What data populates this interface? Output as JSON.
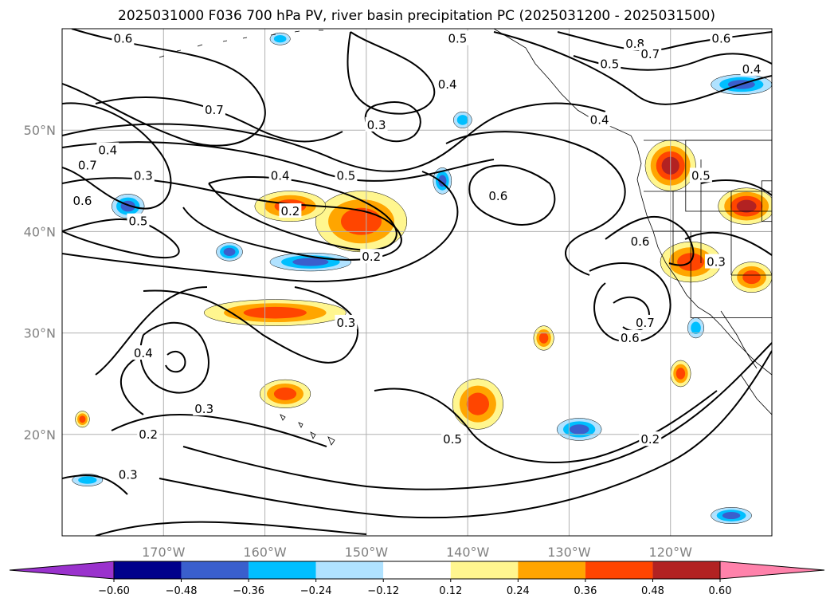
{
  "title": "2025031000 F036 700 hPa PV, river basin precipitation PC (2025031200 - 2025031500)",
  "map": {
    "lon_range": [
      -180,
      -110
    ],
    "lat_range": [
      10,
      60
    ],
    "lat_ticks": [
      {
        "label": "50°N",
        "lat": 50
      },
      {
        "label": "40°N",
        "lat": 40
      },
      {
        "label": "30°N",
        "lat": 30
      },
      {
        "label": "20°N",
        "lat": 20
      }
    ],
    "lon_ticks": [
      {
        "label": "170°W",
        "lon": -170
      },
      {
        "label": "160°W",
        "lon": -160
      },
      {
        "label": "150°W",
        "lon": -150
      },
      {
        "label": "140°W",
        "lon": -140
      },
      {
        "label": "130°W",
        "lon": -130
      },
      {
        "label": "120°W",
        "lon": -120
      }
    ],
    "gridlines": true
  },
  "pv_contours": {
    "color": "#000000",
    "labels": [
      {
        "text": "0.6",
        "lon": -174,
        "lat": 59
      },
      {
        "text": "0.5",
        "lon": -141,
        "lat": 59
      },
      {
        "text": "0.4",
        "lon": -142,
        "lat": 54.5
      },
      {
        "text": "0.3",
        "lon": -149,
        "lat": 50.5
      },
      {
        "text": "0.7",
        "lon": -165,
        "lat": 52
      },
      {
        "text": "0.4",
        "lon": -175.5,
        "lat": 48
      },
      {
        "text": "0.3",
        "lon": -172,
        "lat": 45.5
      },
      {
        "text": "0.7",
        "lon": -177.5,
        "lat": 46.5
      },
      {
        "text": "0.6",
        "lon": -178,
        "lat": 43
      },
      {
        "text": "0.5",
        "lon": -172.5,
        "lat": 41
      },
      {
        "text": "0.4",
        "lon": -158.5,
        "lat": 45.5
      },
      {
        "text": "0.5",
        "lon": -152,
        "lat": 45.5
      },
      {
        "text": "0.2",
        "lon": -157.5,
        "lat": 42
      },
      {
        "text": "0.2",
        "lon": -149.5,
        "lat": 37.5
      },
      {
        "text": "0.6",
        "lon": -137,
        "lat": 43.5
      },
      {
        "text": "0.6",
        "lon": -123,
        "lat": 39
      },
      {
        "text": "0.8",
        "lon": -123.5,
        "lat": 58.5
      },
      {
        "text": "0.7",
        "lon": -122,
        "lat": 57.5
      },
      {
        "text": "0.6",
        "lon": -115,
        "lat": 59
      },
      {
        "text": "0.5",
        "lon": -126,
        "lat": 56.5
      },
      {
        "text": "0.4",
        "lon": -112,
        "lat": 56
      },
      {
        "text": "0.4",
        "lon": -127,
        "lat": 51
      },
      {
        "text": "0.5",
        "lon": -117,
        "lat": 45.5
      },
      {
        "text": "0.3",
        "lon": -115.5,
        "lat": 37
      },
      {
        "text": "0.7",
        "lon": -122.5,
        "lat": 31
      },
      {
        "text": "0.6",
        "lon": -124,
        "lat": 29.5
      },
      {
        "text": "0.3",
        "lon": -152,
        "lat": 31
      },
      {
        "text": "0.4",
        "lon": -172,
        "lat": 28
      },
      {
        "text": "0.3",
        "lon": -166,
        "lat": 22.5
      },
      {
        "text": "0.2",
        "lon": -171.5,
        "lat": 20
      },
      {
        "text": "0.3",
        "lon": -173.5,
        "lat": 16
      },
      {
        "text": "0.5",
        "lon": -141.5,
        "lat": 19.5
      },
      {
        "text": "0.2",
        "lon": -122,
        "lat": 19.5
      }
    ]
  },
  "precip_pc": {
    "blobs": [
      {
        "lon": -150.5,
        "lat": 41,
        "rx": 4.5,
        "ry": 3,
        "value": 0.42
      },
      {
        "lon": -157.5,
        "lat": 42.5,
        "rx": 3.5,
        "ry": 1.5,
        "value": 0.38
      },
      {
        "lon": -159,
        "lat": 32,
        "rx": 7,
        "ry": 1.3,
        "value": 0.38
      },
      {
        "lon": -158,
        "lat": 24,
        "rx": 2.5,
        "ry": 1.4,
        "value": 0.4
      },
      {
        "lon": -139,
        "lat": 23,
        "rx": 2.5,
        "ry": 2.5,
        "value": 0.45
      },
      {
        "lon": -120,
        "lat": 46.5,
        "rx": 2.5,
        "ry": 2.5,
        "value": 0.52
      },
      {
        "lon": -112.5,
        "lat": 42.5,
        "rx": 2.8,
        "ry": 1.8,
        "value": 0.5
      },
      {
        "lon": -118,
        "lat": 37,
        "rx": 3,
        "ry": 2,
        "value": 0.48
      },
      {
        "lon": -112,
        "lat": 35.5,
        "rx": 2,
        "ry": 1.5,
        "value": 0.45
      },
      {
        "lon": -132.5,
        "lat": 29.5,
        "rx": 1,
        "ry": 1.2,
        "value": 0.38
      },
      {
        "lon": -178,
        "lat": 21.5,
        "rx": 0.7,
        "ry": 0.8,
        "value": 0.38
      },
      {
        "lon": -119,
        "lat": 26,
        "rx": 1,
        "ry": 1.3,
        "value": 0.38
      },
      {
        "lon": -174.5,
        "lat": 11,
        "rx": 0.1,
        "ry": 0.1,
        "value": 0.0
      },
      {
        "lon": -163.5,
        "lat": 38,
        "rx": 1.3,
        "ry": 0.9,
        "value": -0.38
      },
      {
        "lon": -155.5,
        "lat": 37,
        "rx": 4,
        "ry": 0.9,
        "value": -0.4
      },
      {
        "lon": -173.5,
        "lat": 42.5,
        "rx": 1.6,
        "ry": 1.2,
        "value": -0.4
      },
      {
        "lon": -140.5,
        "lat": 51,
        "rx": 0.9,
        "ry": 0.8,
        "value": -0.36
      },
      {
        "lon": -142.5,
        "lat": 45,
        "rx": 0.9,
        "ry": 1.3,
        "value": -0.38
      },
      {
        "lon": -129,
        "lat": 20.5,
        "rx": 2.2,
        "ry": 1.1,
        "value": -0.4
      },
      {
        "lon": -113,
        "lat": 54.5,
        "rx": 3,
        "ry": 1,
        "value": -0.42
      },
      {
        "lon": -114,
        "lat": 12,
        "rx": 2,
        "ry": 0.8,
        "value": -0.4
      },
      {
        "lon": -177.5,
        "lat": 15.5,
        "rx": 1.5,
        "ry": 0.6,
        "value": -0.36
      },
      {
        "lon": -158.5,
        "lat": 59,
        "rx": 1,
        "ry": 0.6,
        "value": -0.36
      },
      {
        "lon": -117.5,
        "lat": 30.5,
        "rx": 0.8,
        "ry": 1,
        "value": -0.36
      }
    ],
    "small_regions": [
      {
        "west": -118.5,
        "east": -110,
        "south": 42,
        "north": 49
      },
      {
        "west": -118,
        "east": -110,
        "south": 31.5,
        "north": 40
      },
      {
        "west": -111,
        "east": -110,
        "south": 41,
        "north": 45
      }
    ]
  },
  "colorbar": {
    "levels": [
      "−0.60",
      "−0.48",
      "−0.36",
      "−0.24",
      "−0.12",
      "0.12",
      "0.24",
      "0.36",
      "0.48",
      "0.60"
    ],
    "colors": [
      "#9a32cd",
      "#00008b",
      "#3a5fcd",
      "#00bfff",
      "#b0e2ff",
      "#ffffff",
      "#fff68f",
      "#ffa500",
      "#ff4500",
      "#b22222",
      "#ff82ab"
    ]
  }
}
